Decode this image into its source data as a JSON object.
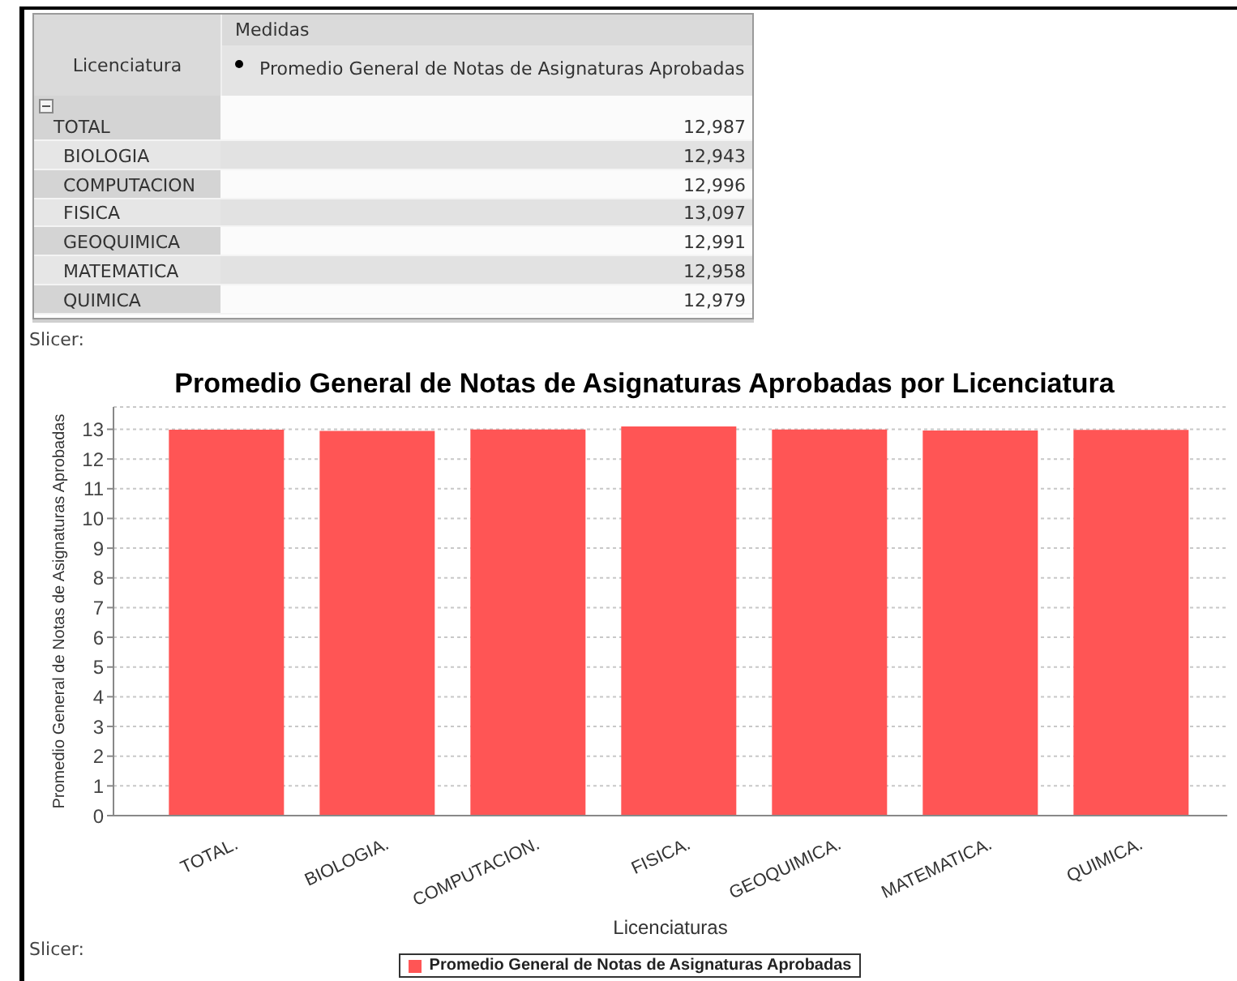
{
  "chart_data": [
    {
      "type": "other",
      "annotations": [
        "Medidas",
        "Licenciatura",
        "Promedio General de Notas de Asignaturas Aprobadas",
        "TOTAL",
        "12,987",
        "BIOLOGIA",
        "12,943",
        "COMPUTACION",
        "12,996",
        "FISICA",
        "13,097",
        "GEOQUIMICA",
        "12,991",
        "MATEMATICA",
        "12,958",
        "QUIMICA",
        "12,979"
      ]
    },
    {
      "type": "bar",
      "title": "Promedio General de Notas de Asignaturas Aprobadas por Licenciatura",
      "xlabel": "Licenciaturas",
      "ylabel": "Promedio General de Notas de Asignaturas Aprobadas",
      "categories": [
        "TOTAL.",
        "BIOLOGIA.",
        "COMPUTACION.",
        "FISICA.",
        "GEOQUIMICA.",
        "MATEMATICA.",
        "QUIMICA."
      ],
      "series": [
        {
          "name": "Promedio General de Notas de Asignaturas Aprobadas",
          "color": "#ff5555",
          "values": [
            12.987,
            12.943,
            12.996,
            13.097,
            12.991,
            12.958,
            12.979
          ]
        }
      ],
      "ylim": [
        0,
        13.75
      ],
      "yticks": [
        0,
        1,
        2,
        3,
        4,
        5,
        6,
        7,
        8,
        9,
        10,
        11,
        12,
        13
      ],
      "grid": "y",
      "legend": "bottom",
      "annotations": [
        "Slicer:",
        "Slicer:"
      ]
    }
  ]
}
